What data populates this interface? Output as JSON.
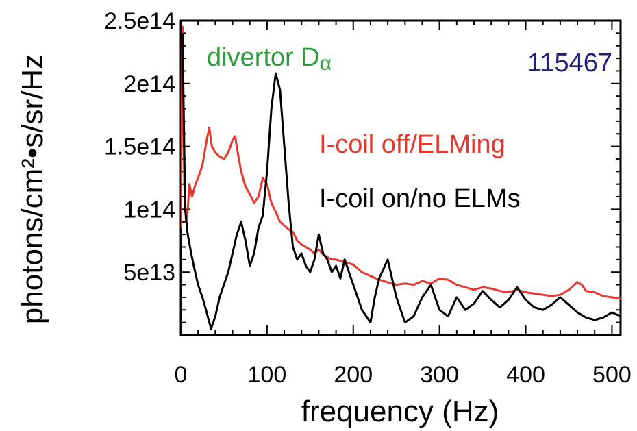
{
  "chart_data": {
    "type": "line",
    "xlabel": "frequency (Hz)",
    "ylabel": "photons/cm²•s/sr/Hz",
    "xlim": [
      0,
      510
    ],
    "ylim": [
      0,
      250000000000000.0
    ],
    "y_plot_min": 0,
    "x_ticks": [
      0,
      100,
      200,
      300,
      400,
      500
    ],
    "x_tick_labels": [
      "0",
      "100",
      "200",
      "300",
      "400",
      "500"
    ],
    "y_ticks": [
      50000000000000.0,
      100000000000000.0,
      150000000000000.0,
      200000000000000.0,
      250000000000000.0
    ],
    "y_tick_labels": [
      "5e13",
      "1e14",
      "1.5e14",
      "2e14",
      "2.5e14"
    ],
    "grid": false,
    "annotations": {
      "title_left": "divertor D",
      "title_left_sub": "α",
      "shot": "115467"
    },
    "series": [
      {
        "name": "I-coil off/ELMing",
        "color": "#e8372c",
        "x": [
          0,
          2,
          4,
          6,
          8,
          10,
          13,
          17,
          20,
          25,
          30,
          33,
          36,
          40,
          45,
          50,
          55,
          60,
          63,
          66,
          70,
          75,
          80,
          85,
          90,
          95,
          100,
          105,
          110,
          115,
          120,
          125,
          130,
          135,
          140,
          145,
          150,
          155,
          160,
          165,
          170,
          175,
          180,
          190,
          200,
          210,
          220,
          230,
          240,
          250,
          260,
          270,
          280,
          290,
          300,
          310,
          320,
          330,
          340,
          350,
          360,
          370,
          380,
          390,
          400,
          410,
          420,
          430,
          440,
          450,
          460,
          465,
          470,
          480,
          490,
          500,
          510
        ],
        "values": [
          85000000000000.0,
          245000000000000.0,
          120000000000000.0,
          90000000000000.0,
          100000000000000.0,
          120000000000000.0,
          110000000000000.0,
          120000000000000.0,
          125000000000000.0,
          135000000000000.0,
          155000000000000.0,
          165000000000000.0,
          150000000000000.0,
          145000000000000.0,
          142000000000000.0,
          140000000000000.0,
          145000000000000.0,
          155000000000000.0,
          158000000000000.0,
          145000000000000.0,
          130000000000000.0,
          118000000000000.0,
          112000000000000.0,
          105000000000000.0,
          110000000000000.0,
          125000000000000.0,
          120000000000000.0,
          105000000000000.0,
          98000000000000.0,
          90000000000000.0,
          87000000000000.0,
          84000000000000.0,
          82000000000000.0,
          75000000000000.0,
          72000000000000.0,
          70000000000000.0,
          68000000000000.0,
          65000000000000.0,
          68000000000000.0,
          64000000000000.0,
          62000000000000.0,
          60000000000000.0,
          60000000000000.0,
          58000000000000.0,
          56000000000000.0,
          50000000000000.0,
          47000000000000.0,
          44000000000000.0,
          42000000000000.0,
          40000000000000.0,
          41000000000000.0,
          40000000000000.0,
          43000000000000.0,
          41000000000000.0,
          45000000000000.0,
          44000000000000.0,
          40000000000000.0,
          38000000000000.0,
          36000000000000.0,
          38000000000000.0,
          37000000000000.0,
          35000000000000.0,
          34000000000000.0,
          36000000000000.0,
          34000000000000.0,
          33000000000000.0,
          32000000000000.0,
          31000000000000.0,
          32000000000000.0,
          36000000000000.0,
          42000000000000.0,
          40000000000000.0,
          35000000000000.0,
          34000000000000.0,
          31000000000000.0,
          30000000000000.0,
          29000000000000.0
        ]
      },
      {
        "name": "I-coil on/no ELMs",
        "color": "#000000",
        "x": [
          2,
          5,
          8,
          12,
          15,
          20,
          25,
          30,
          35,
          40,
          45,
          50,
          55,
          60,
          65,
          70,
          75,
          80,
          85,
          90,
          95,
          100,
          105,
          110,
          115,
          120,
          125,
          130,
          135,
          140,
          145,
          150,
          155,
          160,
          165,
          170,
          175,
          180,
          185,
          190,
          200,
          210,
          220,
          225,
          230,
          240,
          250,
          260,
          270,
          280,
          290,
          300,
          310,
          320,
          330,
          340,
          350,
          360,
          370,
          380,
          390,
          400,
          410,
          420,
          430,
          440,
          450,
          460,
          470,
          480,
          490,
          500,
          510
        ],
        "values": [
          240000000000000.0,
          100000000000000.0,
          80000000000000.0,
          65000000000000.0,
          55000000000000.0,
          40000000000000.0,
          30000000000000.0,
          18000000000000.0,
          5000000000000.0,
          15000000000000.0,
          30000000000000.0,
          40000000000000.0,
          50000000000000.0,
          65000000000000.0,
          80000000000000.0,
          90000000000000.0,
          75000000000000.0,
          55000000000000.0,
          65000000000000.0,
          85000000000000.0,
          95000000000000.0,
          130000000000000.0,
          180000000000000.0,
          208000000000000.0,
          195000000000000.0,
          150000000000000.0,
          105000000000000.0,
          70000000000000.0,
          60000000000000.0,
          65000000000000.0,
          55000000000000.0,
          50000000000000.0,
          60000000000000.0,
          80000000000000.0,
          65000000000000.0,
          60000000000000.0,
          50000000000000.0,
          55000000000000.0,
          45000000000000.0,
          60000000000000.0,
          40000000000000.0,
          20000000000000.0,
          10000000000000.0,
          30000000000000.0,
          45000000000000.0,
          60000000000000.0,
          30000000000000.0,
          10000000000000.0,
          15000000000000.0,
          30000000000000.0,
          40000000000000.0,
          20000000000000.0,
          15000000000000.0,
          30000000000000.0,
          20000000000000.0,
          25000000000000.0,
          35000000000000.0,
          28000000000000.0,
          22000000000000.0,
          28000000000000.0,
          38000000000000.0,
          28000000000000.0,
          22000000000000.0,
          20000000000000.0,
          24000000000000.0,
          30000000000000.0,
          24000000000000.0,
          18000000000000.0,
          14000000000000.0,
          12000000000000.0,
          14000000000000.0,
          18000000000000.0,
          15000000000000.0
        ]
      }
    ]
  }
}
